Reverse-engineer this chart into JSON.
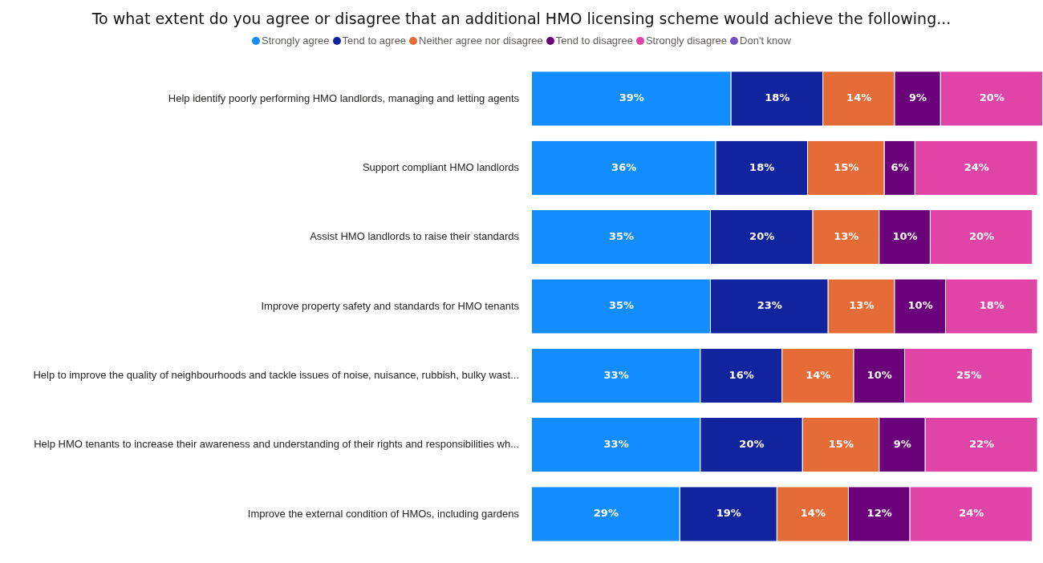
{
  "chart_data": {
    "type": "bar",
    "orientation": "horizontal",
    "stacked": true,
    "title": "To what extent do you agree or disagree that an additional HMO licensing scheme would achieve the following...",
    "categories": [
      "Help identify poorly performing HMO landlords, managing and letting agents",
      "Support compliant HMO landlords",
      "Assist HMO landlords to raise their standards",
      "Improve property safety and standards for HMO tenants",
      "Help to improve the quality of neighbourhoods and tackle issues of noise, nuisance, rubbish, bulky wast...",
      "Help HMO tenants to increase their awareness and understanding of their rights and responsibilities wh...",
      "Improve the external condition of HMOs, including gardens"
    ],
    "xlim": [
      0,
      100
    ],
    "tick_labels": "y",
    "legend": "top",
    "series": [
      {
        "name": "Strongly agree",
        "color": "#118dff",
        "values": [
          39,
          36,
          35,
          35,
          33,
          33,
          29
        ],
        "value_labels": [
          "39%",
          "36%",
          "35%",
          "35%",
          "33%",
          "33%",
          "29%"
        ]
      },
      {
        "name": "Tend to agree",
        "color": "#12239e",
        "values": [
          18,
          18,
          20,
          23,
          16,
          20,
          19
        ],
        "value_labels": [
          "18%",
          "18%",
          "20%",
          "23%",
          "16%",
          "20%",
          "19%"
        ]
      },
      {
        "name": "Neither agree nor disagree",
        "color": "#e66c37",
        "values": [
          14,
          15,
          13,
          13,
          14,
          15,
          14
        ],
        "value_labels": [
          "14%",
          "15%",
          "13%",
          "13%",
          "14%",
          "15%",
          "14%"
        ]
      },
      {
        "name": "Tend to disagree",
        "color": "#6b007b",
        "values": [
          9,
          6,
          10,
          10,
          10,
          9,
          12
        ],
        "value_labels": [
          "9%",
          "6%",
          "10%",
          "10%",
          "10%",
          "9%",
          "12%"
        ]
      },
      {
        "name": "Strongly disagree",
        "color": "#e044a7",
        "values": [
          20,
          24,
          20,
          18,
          25,
          22,
          24
        ],
        "value_labels": [
          "20%",
          "24%",
          "20%",
          "18%",
          "25%",
          "22%",
          "24%"
        ]
      },
      {
        "name": "Don't know",
        "color": "#744ec2",
        "values": [
          null,
          null,
          null,
          null,
          null,
          null,
          null
        ]
      }
    ]
  }
}
